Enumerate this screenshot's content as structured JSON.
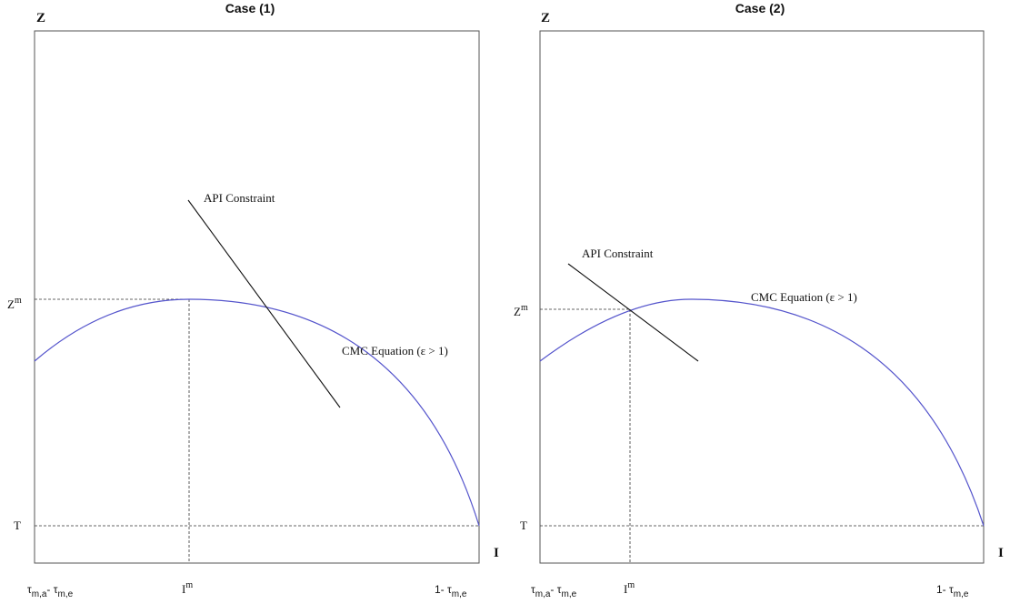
{
  "panels": [
    {
      "title": "Case (1)",
      "y_axis_label": "Z",
      "x_axis_label": "I",
      "y_marks": {
        "zm": "Z",
        "zm_sup": "m",
        "t": "T"
      },
      "x_marks": {
        "left_a": "τ",
        "left_a_sub": "m,a",
        "left_dash": "- ",
        "left_b": "τ",
        "left_b_sub": "m,e",
        "mid": "I",
        "mid_sup": "m",
        "right_pre": "1- ",
        "right_b": "τ",
        "right_b_sub": "m,e"
      },
      "api_label": "API Constraint",
      "cmc_label": "CMC Equation (ε > 1)",
      "colors": {
        "curve": "#5555cc",
        "constraint": "#111111",
        "guide": "#333333"
      }
    },
    {
      "title": "Case (2)",
      "y_axis_label": "Z",
      "x_axis_label": "I",
      "y_marks": {
        "zm": "Z",
        "zm_sup": "m",
        "t": "T"
      },
      "x_marks": {
        "left_a": "τ",
        "left_a_sub": "m,a",
        "left_dash": "- ",
        "left_b": "τ",
        "left_b_sub": "m,e",
        "mid": "I",
        "mid_sup": "m",
        "right_pre": "1- ",
        "right_b": "τ",
        "right_b_sub": "m,e"
      },
      "api_label": "API Constraint",
      "cmc_label": "CMC Equation (ε > 1)",
      "colors": {
        "curve": "#5555cc",
        "constraint": "#111111",
        "guide": "#333333"
      }
    }
  ]
}
